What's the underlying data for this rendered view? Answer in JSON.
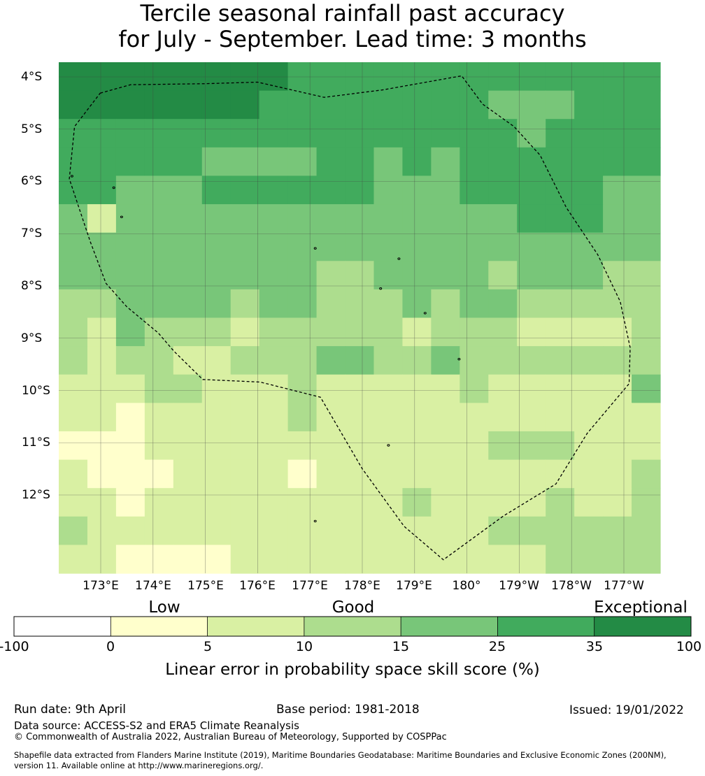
{
  "title_line1": "Tercile seasonal rainfall past accuracy",
  "title_line2": "for July - September. Lead time: 3 months",
  "colors": {
    "exceptional": "#238b45",
    "c25_35": "#41ab5d",
    "c15_25": "#78c679",
    "c10_15": "#addd8e",
    "c5_10": "#d9f0a3",
    "c0_5": "#ffffcc",
    "neg": "#ffffff"
  },
  "chart_data": {
    "type": "heatmap",
    "title": "Tercile seasonal rainfall past accuracy for July - September. Lead time: 3 months",
    "lat_labels": [
      "4°S",
      "5°S",
      "6°S",
      "7°S",
      "8°S",
      "9°S",
      "10°S",
      "11°S",
      "12°S"
    ],
    "lon_labels": [
      "173°E",
      "174°E",
      "175°E",
      "176°E",
      "177°E",
      "178°E",
      "179°E",
      "180°",
      "179°W",
      "178°W",
      "177°W"
    ],
    "legend_categories": [
      "Low",
      "Good",
      "Exceptional"
    ],
    "colorbar_ticks": [
      "-100",
      "0",
      "5",
      "10",
      "15",
      "25",
      "35",
      "100"
    ],
    "colorbar_title": "Linear error in probability space skill score (%)",
    "class_colors": [
      "#ffffff",
      "#ffffcc",
      "#d9f0a3",
      "#addd8e",
      "#78c679",
      "#41ab5d",
      "#238b45"
    ],
    "grid": [
      [
        6,
        6,
        6,
        6,
        6,
        6,
        6,
        6,
        5,
        5,
        5,
        5,
        5,
        5,
        5,
        5,
        5,
        5,
        5,
        5,
        5
      ],
      [
        6,
        6,
        6,
        6,
        6,
        6,
        6,
        5,
        5,
        5,
        5,
        5,
        5,
        5,
        5,
        4,
        4,
        4,
        5,
        5,
        5
      ],
      [
        5,
        5,
        5,
        5,
        5,
        5,
        5,
        5,
        5,
        5,
        5,
        5,
        5,
        5,
        5,
        5,
        4,
        5,
        5,
        5,
        5
      ],
      [
        5,
        5,
        5,
        5,
        5,
        4,
        4,
        4,
        4,
        5,
        5,
        4,
        5,
        4,
        5,
        5,
        5,
        5,
        5,
        5,
        5
      ],
      [
        5,
        5,
        4,
        4,
        4,
        5,
        5,
        5,
        5,
        5,
        5,
        4,
        4,
        4,
        5,
        5,
        5,
        5,
        5,
        4,
        4
      ],
      [
        4,
        2,
        4,
        4,
        4,
        4,
        4,
        4,
        4,
        4,
        4,
        4,
        4,
        4,
        4,
        4,
        5,
        5,
        5,
        4,
        4
      ],
      [
        4,
        4,
        4,
        4,
        4,
        4,
        4,
        4,
        4,
        4,
        4,
        4,
        4,
        4,
        4,
        4,
        4,
        4,
        4,
        4,
        4
      ],
      [
        4,
        4,
        4,
        4,
        4,
        4,
        4,
        4,
        4,
        3,
        3,
        4,
        4,
        4,
        4,
        3,
        4,
        4,
        4,
        3,
        3
      ],
      [
        3,
        3,
        4,
        4,
        4,
        4,
        3,
        4,
        4,
        3,
        3,
        3,
        4,
        3,
        4,
        4,
        3,
        3,
        3,
        3,
        3
      ],
      [
        3,
        2,
        4,
        3,
        3,
        3,
        2,
        3,
        3,
        3,
        3,
        3,
        2,
        3,
        3,
        3,
        2,
        2,
        2,
        2,
        3
      ],
      [
        3,
        2,
        3,
        3,
        2,
        2,
        3,
        3,
        3,
        4,
        4,
        3,
        3,
        4,
        3,
        3,
        3,
        3,
        3,
        3,
        3
      ],
      [
        2,
        2,
        2,
        3,
        3,
        2,
        2,
        2,
        3,
        2,
        2,
        2,
        2,
        2,
        3,
        2,
        2,
        2,
        2,
        2,
        4
      ],
      [
        2,
        2,
        1,
        2,
        2,
        2,
        2,
        2,
        3,
        2,
        2,
        2,
        2,
        2,
        2,
        2,
        2,
        2,
        2,
        2,
        2
      ],
      [
        1,
        1,
        1,
        2,
        2,
        2,
        2,
        2,
        2,
        2,
        2,
        2,
        2,
        2,
        2,
        3,
        3,
        3,
        2,
        2,
        2
      ],
      [
        2,
        1,
        1,
        1,
        2,
        2,
        2,
        2,
        1,
        2,
        2,
        2,
        2,
        2,
        2,
        2,
        2,
        2,
        2,
        2,
        3
      ],
      [
        2,
        2,
        1,
        2,
        2,
        2,
        2,
        2,
        2,
        2,
        2,
        2,
        3,
        2,
        2,
        2,
        2,
        3,
        2,
        2,
        3
      ],
      [
        3,
        2,
        2,
        2,
        2,
        2,
        2,
        2,
        2,
        2,
        2,
        2,
        2,
        2,
        2,
        3,
        3,
        3,
        3,
        3,
        3
      ],
      [
        2,
        2,
        1,
        1,
        1,
        1,
        2,
        2,
        2,
        2,
        2,
        2,
        2,
        2,
        2,
        2,
        2,
        3,
        3,
        3,
        3
      ]
    ],
    "eez_boundary": [
      [
        172.99,
        -4.31
      ],
      [
        173.57,
        -4.15
      ],
      [
        175.0,
        -4.13
      ],
      [
        176.0,
        -4.1
      ],
      [
        177.27,
        -4.39
      ],
      [
        178.38,
        -4.25
      ],
      [
        179.9,
        -3.98
      ],
      [
        -179.7,
        -4.52
      ],
      [
        -179.1,
        -4.95
      ],
      [
        -178.6,
        -5.5
      ],
      [
        -178.1,
        -6.5
      ],
      [
        -177.5,
        -7.4
      ],
      [
        -177.07,
        -8.3
      ],
      [
        -176.88,
        -9.18
      ],
      [
        -176.9,
        -9.87
      ],
      [
        -177.7,
        -10.82
      ],
      [
        -178.3,
        -11.79
      ],
      [
        -179.3,
        -12.4
      ],
      [
        179.55,
        -13.24
      ],
      [
        178.8,
        -12.6
      ],
      [
        178.0,
        -11.5
      ],
      [
        177.2,
        -10.13
      ],
      [
        176.05,
        -9.84
      ],
      [
        174.95,
        -9.79
      ],
      [
        174.4,
        -9.25
      ],
      [
        174.1,
        -8.9
      ],
      [
        173.5,
        -8.4
      ],
      [
        173.1,
        -7.95
      ],
      [
        172.8,
        -7.15
      ],
      [
        172.4,
        -5.95
      ],
      [
        172.5,
        -4.95
      ],
      [
        172.99,
        -4.31
      ]
    ]
  },
  "footer": {
    "run_date": "Run date: 9th April",
    "base_period": "Base period: 1981-2018",
    "issued": "Issued: 19/01/2022",
    "data_source": "Data source: ACCESS-S2 and ERA5 Climate Reanalysis",
    "copyright": "© Commonwealth of Australia 2022, Australian Bureau of Meteorology, Supported by COSPPac",
    "shapefile_line1": "Shapefile data extracted from Flanders Marine Institute (2019), Maritime Boundaries Geodatabase: Maritime Boundaries and Exclusive Economic Zones (200NM),",
    "shapefile_line2": "version 11. Available online at http://www.marineregions.org/."
  }
}
